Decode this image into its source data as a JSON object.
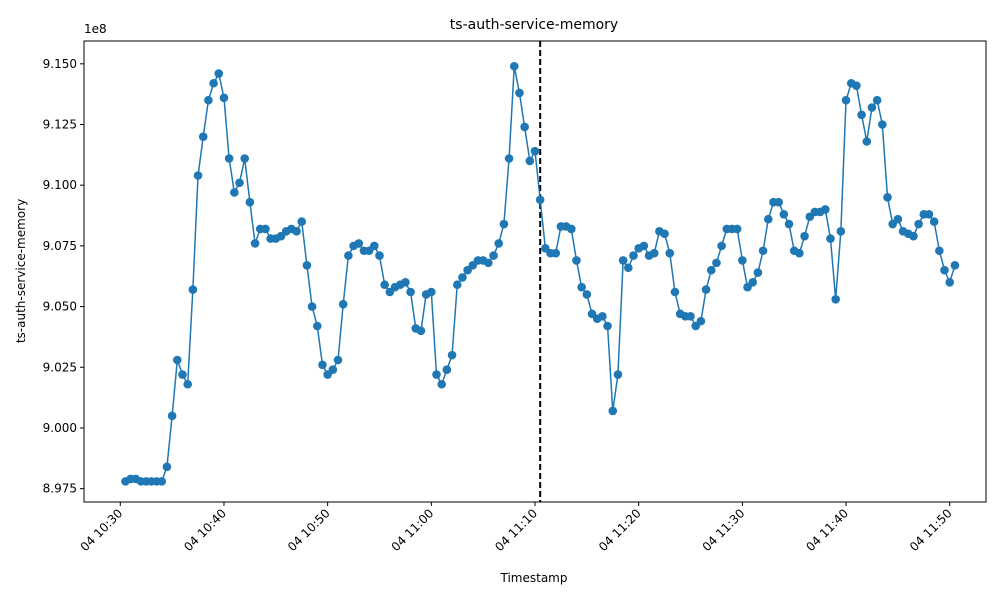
{
  "chart_data": {
    "type": "line",
    "title": "ts-auth-service-memory",
    "xlabel": "Timestamp",
    "ylabel": "ts-auth-service-memory",
    "y_offset_label": "1e8",
    "y_scale": 100000000,
    "line_color": "#1f77b4",
    "marker": "circle",
    "grid": false,
    "x_tick_labels": [
      "04 10:30",
      "04 10:40",
      "04 10:50",
      "04 11:00",
      "04 11:10",
      "04 11:20",
      "04 11:30",
      "04 11:40",
      "04 11:50"
    ],
    "y_tick_labels": [
      "8.975",
      "9.000",
      "9.025",
      "9.050",
      "9.075",
      "9.100",
      "9.125",
      "9.150"
    ],
    "xlim_minutes": [
      -3.5,
      83.5
    ],
    "ylim": [
      8.9695,
      9.1594
    ],
    "vline_minute": 40.5,
    "vline_style": "dashed",
    "series": [
      {
        "x_minutes": [
          0.5,
          1.0,
          1.5,
          2.0,
          2.5,
          3.0,
          3.5,
          4.0,
          4.5,
          5.0,
          5.5,
          6.0,
          6.5,
          7.0,
          7.5,
          8.0,
          8.5,
          9.0,
          9.5,
          10.0,
          10.5,
          11.0,
          11.5,
          12.0,
          12.5,
          13.0,
          13.5,
          14.0,
          14.5,
          15.0,
          15.5,
          16.0,
          16.5,
          17.0,
          17.5,
          18.0,
          18.5,
          19.0,
          19.5,
          20.0,
          20.5,
          21.0,
          21.5,
          22.0,
          22.5,
          23.0,
          23.5,
          24.0,
          24.5,
          25.0,
          25.5,
          26.0,
          26.5,
          27.0,
          27.5,
          28.0,
          28.5,
          29.0,
          29.5,
          30.0,
          30.5,
          31.0,
          31.5,
          32.0,
          32.5,
          33.0,
          33.5,
          34.0,
          34.5,
          35.0,
          35.5,
          36.0,
          36.5,
          37.0,
          37.5,
          38.0,
          38.5,
          39.0,
          39.5,
          40.0,
          40.5,
          41.0,
          41.5,
          42.0,
          42.5,
          43.0,
          43.5,
          44.0,
          44.5,
          45.0,
          45.5,
          46.0,
          46.5,
          47.0,
          47.5,
          48.0,
          48.5,
          49.0,
          49.5,
          50.0,
          50.5,
          51.0,
          51.5,
          52.0,
          52.5,
          53.0,
          53.5,
          54.0,
          54.5,
          55.0,
          55.5,
          56.0,
          56.5,
          57.0,
          57.5,
          58.0,
          58.5,
          59.0,
          59.5,
          60.0,
          60.5,
          61.0,
          61.5,
          62.0,
          62.5,
          63.0,
          63.5,
          64.0,
          64.5,
          65.0,
          65.5,
          66.0,
          66.5,
          67.0,
          67.5,
          68.0,
          68.5,
          69.0,
          69.5,
          70.0,
          70.5,
          71.0,
          71.5,
          72.0,
          72.5,
          73.0,
          73.5,
          74.0,
          74.5,
          75.0,
          75.5,
          76.0,
          76.5,
          77.0,
          77.5,
          78.0,
          78.5,
          79.0,
          79.5,
          80.0,
          80.5
        ],
        "y": [
          8.978,
          8.979,
          8.979,
          8.978,
          8.978,
          8.978,
          8.978,
          8.978,
          8.984,
          9.005,
          9.028,
          9.022,
          9.018,
          9.057,
          9.104,
          9.12,
          9.135,
          9.142,
          9.146,
          9.136,
          9.111,
          9.097,
          9.101,
          9.111,
          9.093,
          9.076,
          9.082,
          9.082,
          9.078,
          9.078,
          9.079,
          9.081,
          9.082,
          9.081,
          9.085,
          9.067,
          9.05,
          9.042,
          9.026,
          9.022,
          9.024,
          9.028,
          9.051,
          9.071,
          9.075,
          9.076,
          9.073,
          9.073,
          9.075,
          9.071,
          9.059,
          9.056,
          9.058,
          9.059,
          9.06,
          9.056,
          9.041,
          9.04,
          9.055,
          9.056,
          9.022,
          9.018,
          9.024,
          9.03,
          9.059,
          9.062,
          9.065,
          9.067,
          9.069,
          9.069,
          9.068,
          9.071,
          9.076,
          9.084,
          9.111,
          9.149,
          9.138,
          9.124,
          9.11,
          9.114,
          9.094,
          9.074,
          9.072,
          9.072,
          9.083,
          9.083,
          9.082,
          9.069,
          9.058,
          9.055,
          9.047,
          9.045,
          9.046,
          9.042,
          9.007,
          9.022,
          9.069,
          9.066,
          9.071,
          9.074,
          9.075,
          9.071,
          9.072,
          9.081,
          9.08,
          9.072,
          9.056,
          9.047,
          9.046,
          9.046,
          9.042,
          9.044,
          9.057,
          9.065,
          9.068,
          9.075,
          9.082,
          9.082,
          9.082,
          9.069,
          9.058,
          9.06,
          9.064,
          9.073,
          9.086,
          9.093,
          9.093,
          9.088,
          9.084,
          9.073,
          9.072,
          9.079,
          9.087,
          9.089,
          9.089,
          9.09,
          9.078,
          9.053,
          9.081,
          9.135,
          9.142,
          9.141,
          9.129,
          9.118,
          9.132,
          9.135,
          9.125,
          9.095,
          9.084,
          9.086,
          9.081,
          9.08,
          9.079,
          9.084,
          9.088,
          9.088,
          9.085,
          9.073,
          9.065,
          9.06,
          9.067
        ]
      }
    ]
  }
}
